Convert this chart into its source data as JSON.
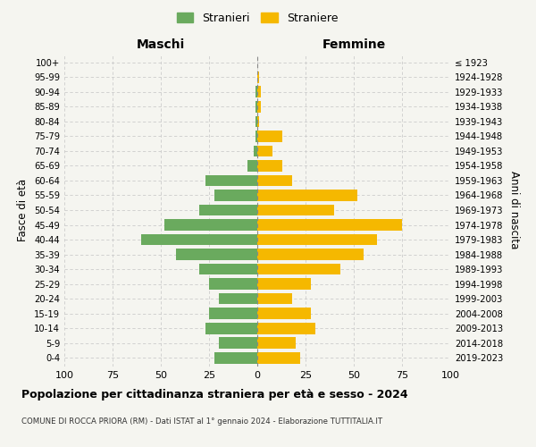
{
  "age_groups": [
    "0-4",
    "5-9",
    "10-14",
    "15-19",
    "20-24",
    "25-29",
    "30-34",
    "35-39",
    "40-44",
    "45-49",
    "50-54",
    "55-59",
    "60-64",
    "65-69",
    "70-74",
    "75-79",
    "80-84",
    "85-89",
    "90-94",
    "95-99",
    "100+"
  ],
  "birth_years": [
    "2019-2023",
    "2014-2018",
    "2009-2013",
    "2004-2008",
    "1999-2003",
    "1994-1998",
    "1989-1993",
    "1984-1988",
    "1979-1983",
    "1974-1978",
    "1969-1973",
    "1964-1968",
    "1959-1963",
    "1954-1958",
    "1949-1953",
    "1944-1948",
    "1939-1943",
    "1934-1938",
    "1929-1933",
    "1924-1928",
    "≤ 1923"
  ],
  "males": [
    22,
    20,
    27,
    25,
    20,
    25,
    30,
    42,
    60,
    48,
    30,
    22,
    27,
    5,
    2,
    1,
    1,
    1,
    1,
    0,
    0
  ],
  "females": [
    22,
    20,
    30,
    28,
    18,
    28,
    43,
    55,
    62,
    75,
    40,
    52,
    18,
    13,
    8,
    13,
    1,
    2,
    2,
    1,
    0
  ],
  "male_color": "#6aaa5e",
  "female_color": "#f5b800",
  "background_color": "#f5f5f0",
  "grid_color": "#cccccc",
  "center_line_color": "#888888",
  "title": "Popolazione per cittadinanza straniera per età e sesso - 2024",
  "subtitle": "COMUNE DI ROCCA PRIORA (RM) - Dati ISTAT al 1° gennaio 2024 - Elaborazione TUTTITALIA.IT",
  "xlabel_left": "Maschi",
  "xlabel_right": "Femmine",
  "ylabel_left": "Fasce di età",
  "ylabel_right": "Anni di nascita",
  "legend_male": "Stranieri",
  "legend_female": "Straniere",
  "xlim": 100
}
